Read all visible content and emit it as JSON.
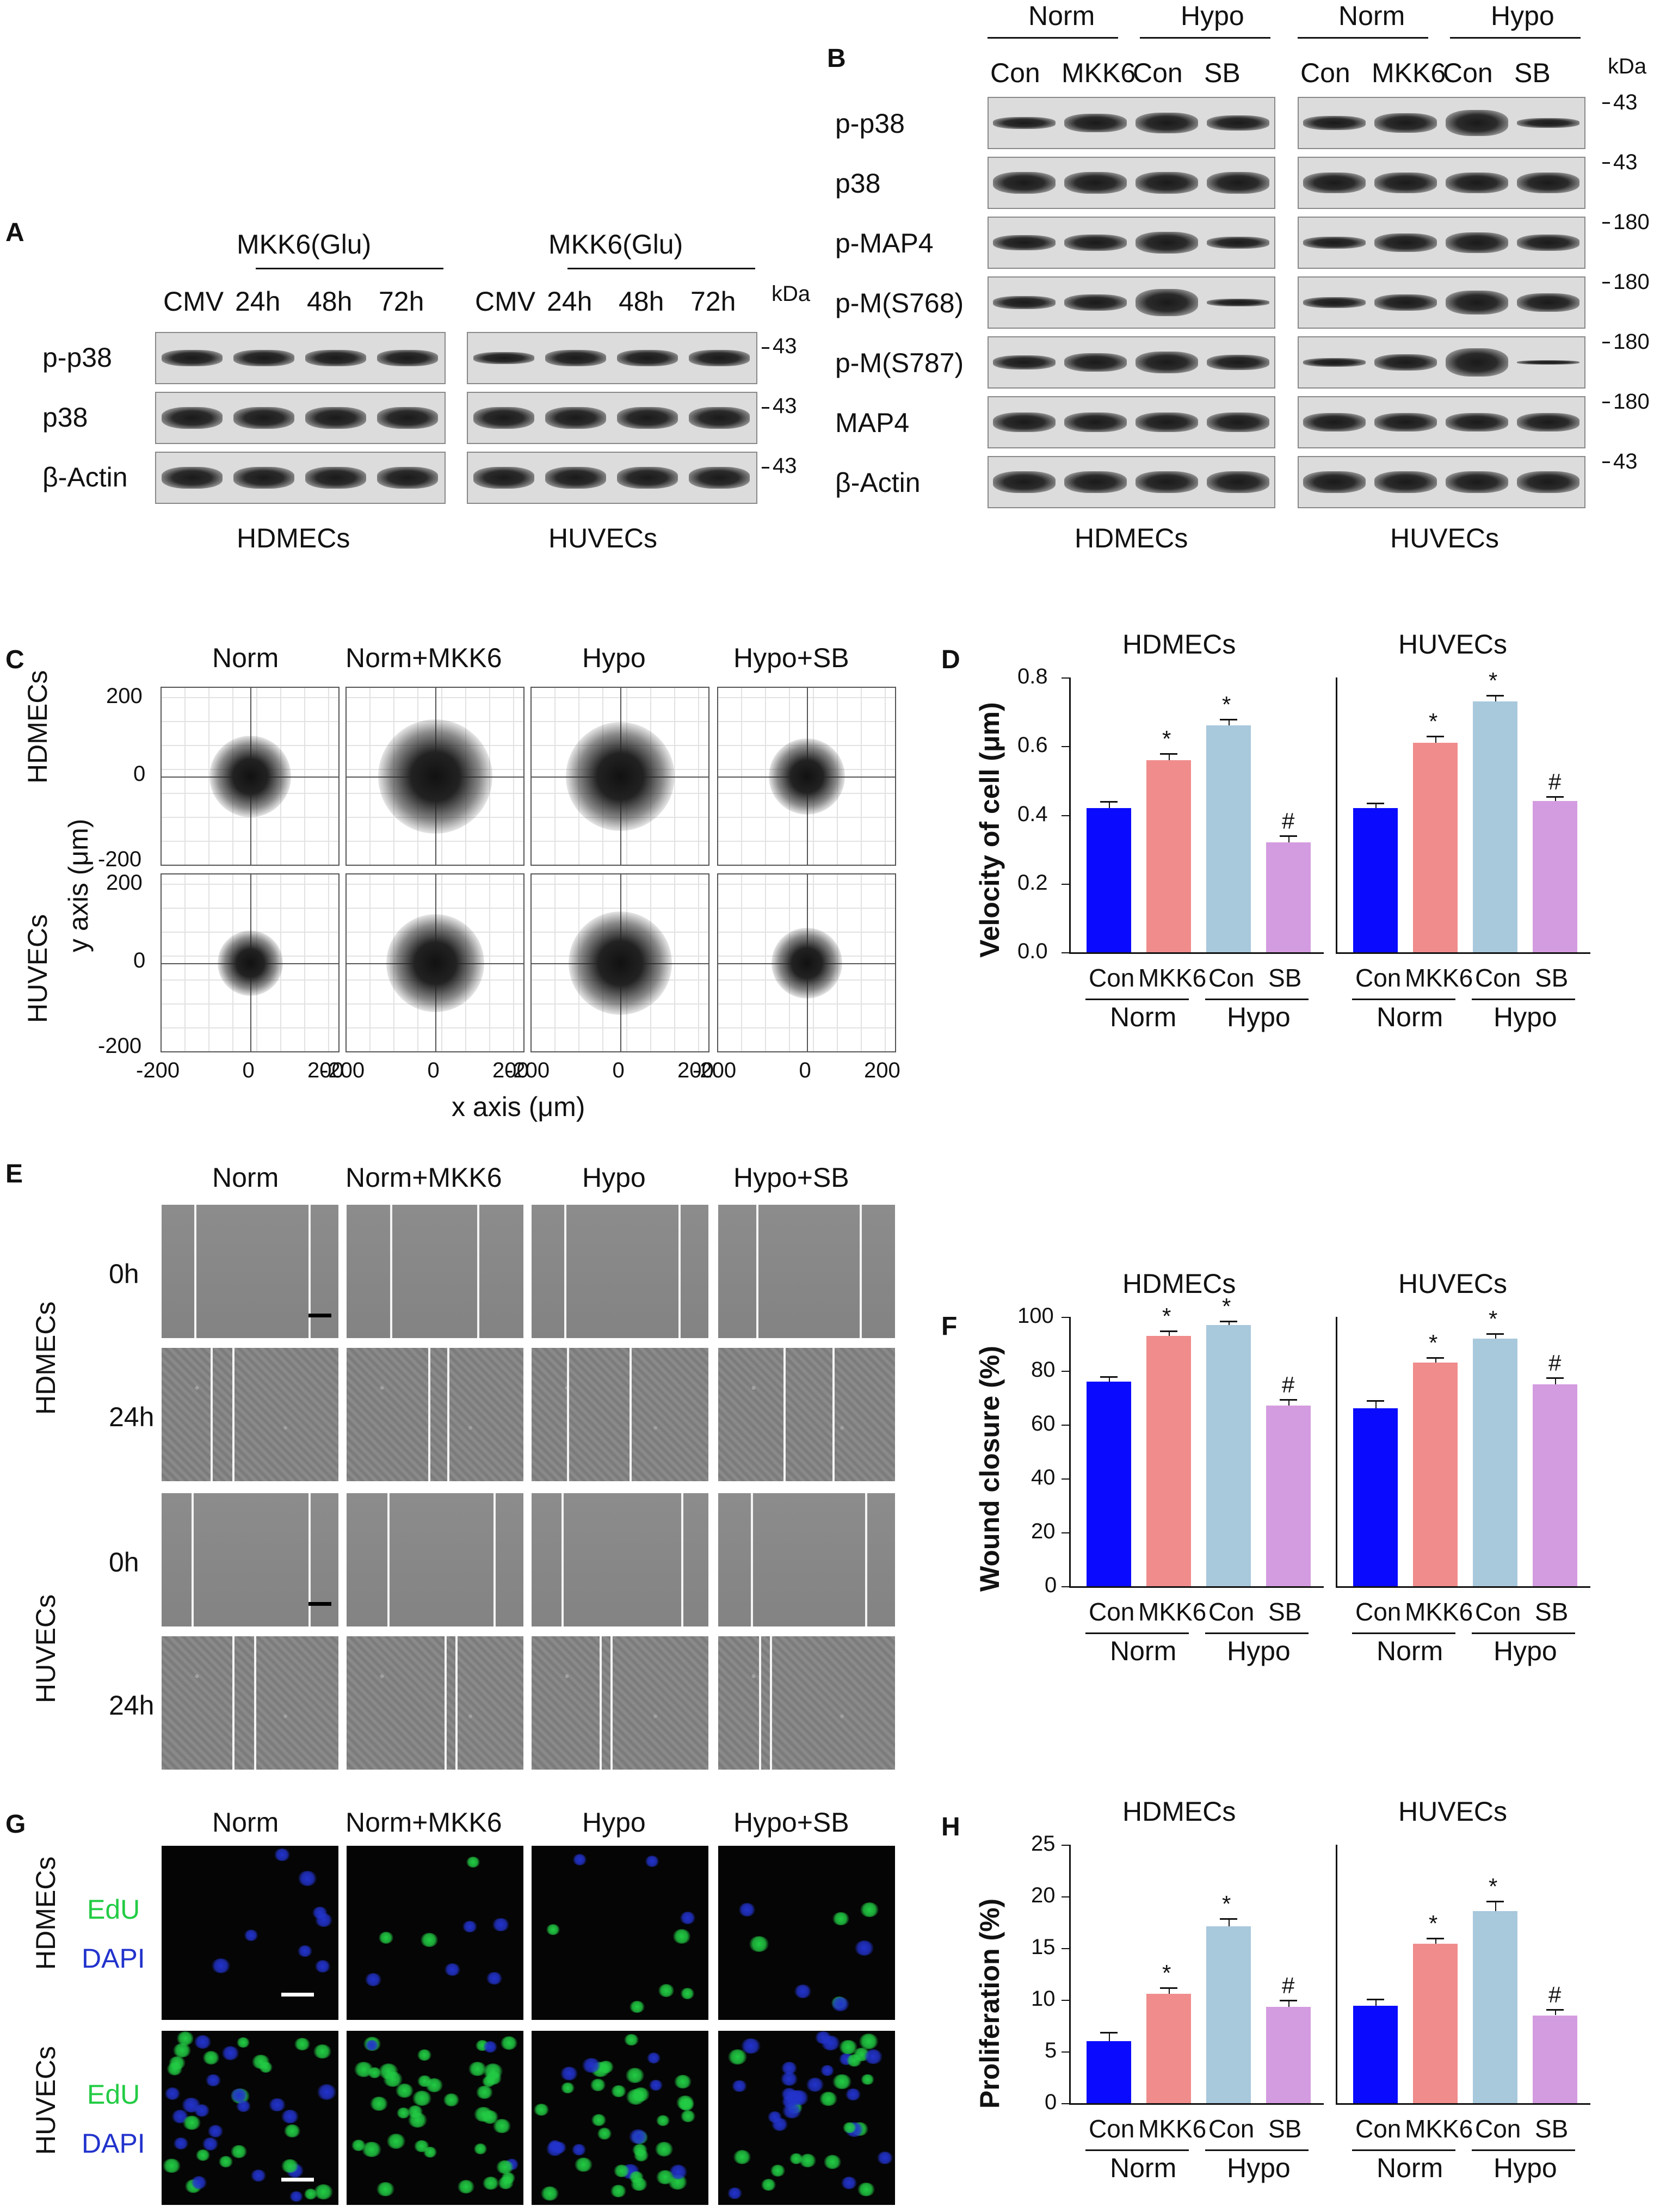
{
  "panels": {
    "A": {
      "label": "A",
      "group_header": "MKK6(Glu)",
      "lanes": [
        "CMV",
        "24h",
        "48h",
        "72h"
      ],
      "rows": [
        "p-p38",
        "p38",
        "β-Actin"
      ],
      "kda_header": "kDa",
      "markers": [
        "43",
        "43",
        "43"
      ],
      "cells": [
        "HDMECs",
        "HUVECs"
      ]
    },
    "B": {
      "label": "B",
      "conditions": [
        "Norm",
        "Hypo",
        "Norm",
        "Hypo"
      ],
      "lanes": [
        "Con",
        "MKK6",
        "Con",
        "SB",
        "Con",
        "MKK6",
        "Con",
        "SB"
      ],
      "rows": [
        "p-p38",
        "p38",
        "p-MAP4",
        "p-M(S768)",
        "p-M(S787)",
        "MAP4",
        "β-Actin"
      ],
      "kda_header": "kDa",
      "markers": [
        "43",
        "43",
        "180",
        "180",
        "180",
        "180",
        "43"
      ],
      "cells": [
        "HDMECs",
        "HUVECs"
      ]
    },
    "C": {
      "label": "C",
      "columns": [
        "Norm",
        "Norm+MKK6",
        "Hypo",
        "Hypo+SB"
      ],
      "rows": [
        "HDMECs",
        "HUVECs"
      ],
      "ylabel": "y axis (μm)",
      "xlabel": "x axis (μm)",
      "yticks": [
        "200",
        "0",
        "-200",
        "200",
        "0",
        "-200"
      ],
      "xticks": [
        "-200",
        "0",
        "200",
        "-200",
        "0",
        "200",
        "-200",
        "0",
        "200",
        "-200",
        "0",
        "200"
      ]
    },
    "E": {
      "label": "E",
      "columns": [
        "Norm",
        "Norm+MKK6",
        "Hypo",
        "Hypo+SB"
      ],
      "rows": [
        "HDMECs",
        "HUVECs"
      ],
      "times": [
        "0h",
        "24h",
        "0h",
        "24h"
      ]
    },
    "G": {
      "label": "G",
      "columns": [
        "Norm",
        "Norm+MKK6",
        "Hypo",
        "Hypo+SB"
      ],
      "rows": [
        "HDMECs",
        "HUVECs"
      ],
      "stains": [
        "EdU",
        "DAPI"
      ],
      "colors": {
        "edu": "#22cc44",
        "dapi": "#2233cc"
      }
    }
  },
  "chart_data": [
    {
      "panel": "D",
      "type": "bar",
      "ylabel": "Velocity of cell (μm)",
      "ylim": [
        0,
        0.8
      ],
      "yticks": [
        "0.0",
        "0.2",
        "0.4",
        "0.6",
        "0.8"
      ],
      "categories": [
        "Con",
        "MKK6",
        "Con",
        "SB"
      ],
      "groups": [
        "Norm",
        "Hypo"
      ],
      "colors": [
        "#0a0aff",
        "#f08c8c",
        "#a8c8dc",
        "#d49ce0"
      ],
      "subplots": [
        {
          "title": "HDMECs",
          "values": [
            0.42,
            0.56,
            0.66,
            0.32
          ],
          "errors": [
            0.02,
            0.02,
            0.02,
            0.02
          ],
          "marks": [
            "",
            "*",
            "*",
            "#"
          ]
        },
        {
          "title": "HUVECs",
          "values": [
            0.42,
            0.61,
            0.73,
            0.44
          ],
          "errors": [
            0.015,
            0.02,
            0.02,
            0.015
          ],
          "marks": [
            "",
            "*",
            "*",
            "#"
          ]
        }
      ]
    },
    {
      "panel": "F",
      "type": "bar",
      "ylabel": "Wound closure (%)",
      "ylim": [
        0,
        100
      ],
      "yticks": [
        "0",
        "20",
        "40",
        "60",
        "80",
        "100"
      ],
      "categories": [
        "Con",
        "MKK6",
        "Con",
        "SB"
      ],
      "groups": [
        "Norm",
        "Hypo"
      ],
      "colors": [
        "#0a0aff",
        "#f08c8c",
        "#a8c8dc",
        "#d49ce0"
      ],
      "subplots": [
        {
          "title": "HDMECs",
          "values": [
            76,
            93,
            97,
            67
          ],
          "errors": [
            2,
            2,
            1.5,
            2.5
          ],
          "marks": [
            "",
            "*",
            "*",
            "#"
          ]
        },
        {
          "title": "HUVECs",
          "values": [
            66,
            83,
            92,
            75
          ],
          "errors": [
            3,
            2,
            2,
            2.5
          ],
          "marks": [
            "",
            "*",
            "*",
            "#"
          ]
        }
      ]
    },
    {
      "panel": "H",
      "type": "bar",
      "ylabel": "Proliferation (%)",
      "ylim": [
        0,
        25
      ],
      "yticks": [
        "0",
        "5",
        "10",
        "15",
        "20",
        "25"
      ],
      "categories": [
        "Con",
        "MKK6",
        "Con",
        "SB"
      ],
      "groups": [
        "Norm",
        "Hypo"
      ],
      "colors": [
        "#0a0aff",
        "#f08c8c",
        "#a8c8dc",
        "#d49ce0"
      ],
      "subplots": [
        {
          "title": "HDMECs",
          "values": [
            6.0,
            10.6,
            17.1,
            9.3
          ],
          "errors": [
            0.9,
            0.6,
            0.8,
            0.7
          ],
          "marks": [
            "",
            "*",
            "*",
            "#"
          ]
        },
        {
          "title": "HUVECs",
          "values": [
            9.4,
            15.4,
            18.6,
            8.5
          ],
          "errors": [
            0.7,
            0.6,
            1.0,
            0.6
          ],
          "marks": [
            "",
            "*",
            "*",
            "#"
          ]
        }
      ]
    }
  ]
}
